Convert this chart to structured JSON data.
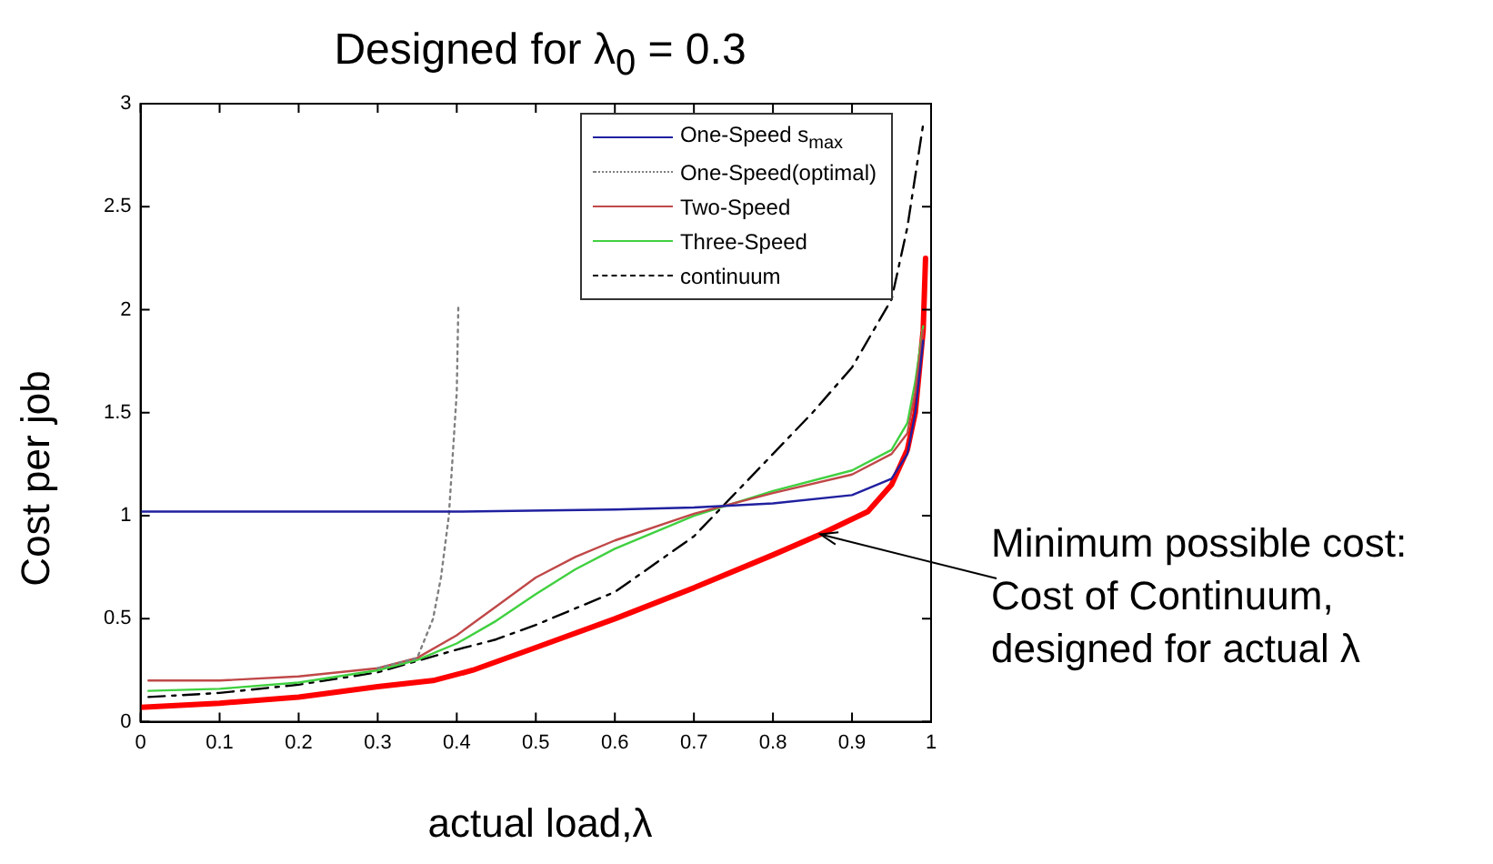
{
  "chart_data": {
    "type": "line",
    "title": "Designed for λ$_{0}$ = 0.3",
    "xlabel": "actual load,λ",
    "ylabel": "Cost per job",
    "xlim": [
      0,
      1
    ],
    "xticks": [
      0,
      0.1,
      0.2,
      0.3,
      0.4,
      0.5,
      0.6,
      0.7,
      0.8,
      0.9,
      1
    ],
    "ylim": [
      0,
      3
    ],
    "yticks": [
      0,
      0.5,
      1,
      1.5,
      2,
      2.5,
      3
    ],
    "grid": false,
    "legend": "top right",
    "marker": "none",
    "annotations": [
      {
        "text": "Minimum possible cost:\nCost of Continuum,\ndesigned for actual λ",
        "x": 0.86,
        "y": 0.91
      }
    ],
    "series": [
      {
        "name": "One-Speed s$_{max}$",
        "color": "#2020a0",
        "line_style": "solid",
        "x": [
          0,
          0.4,
          0.6,
          0.7,
          0.8,
          0.9,
          0.95,
          0.97,
          0.98,
          0.99
        ],
        "values": [
          1.02,
          1.02,
          1.03,
          1.04,
          1.06,
          1.1,
          1.18,
          1.3,
          1.5,
          1.85
        ]
      },
      {
        "name": "One-Speed(optimal)",
        "color": "#808080",
        "line_style": "dotted",
        "x": [
          0.3,
          0.35,
          0.37,
          0.38,
          0.39,
          0.395,
          0.4,
          0.402
        ],
        "values": [
          0.26,
          0.31,
          0.5,
          0.7,
          1.0,
          1.3,
          1.6,
          2.02
        ]
      },
      {
        "name": "Two-Speed",
        "color": "#c04848",
        "line_style": "solid",
        "x": [
          0.01,
          0.1,
          0.2,
          0.3,
          0.35,
          0.4,
          0.45,
          0.5,
          0.55,
          0.6,
          0.7,
          0.8,
          0.9,
          0.95,
          0.97,
          0.98,
          0.99
        ],
        "values": [
          0.2,
          0.2,
          0.22,
          0.26,
          0.31,
          0.42,
          0.56,
          0.7,
          0.8,
          0.88,
          1.01,
          1.11,
          1.2,
          1.3,
          1.4,
          1.6,
          1.9
        ]
      },
      {
        "name": "Three-Speed",
        "color": "#40d040",
        "line_style": "solid",
        "x": [
          0.01,
          0.1,
          0.2,
          0.3,
          0.35,
          0.4,
          0.45,
          0.5,
          0.55,
          0.6,
          0.7,
          0.8,
          0.9,
          0.95,
          0.97,
          0.98,
          0.99
        ],
        "values": [
          0.15,
          0.16,
          0.19,
          0.25,
          0.3,
          0.38,
          0.49,
          0.62,
          0.74,
          0.84,
          1.0,
          1.12,
          1.22,
          1.32,
          1.45,
          1.65,
          1.92
        ]
      },
      {
        "name": "continuum",
        "color": "#000000",
        "line_style": "dashed",
        "x": [
          0.01,
          0.1,
          0.2,
          0.3,
          0.4,
          0.45,
          0.5,
          0.6,
          0.7,
          0.75,
          0.8,
          0.85,
          0.9,
          0.95,
          0.97,
          0.99
        ],
        "values": [
          0.12,
          0.14,
          0.18,
          0.24,
          0.35,
          0.4,
          0.47,
          0.63,
          0.9,
          1.1,
          1.3,
          1.5,
          1.72,
          2.05,
          2.4,
          2.9
        ]
      },
      {
        "color": "#ff0000",
        "line_style": "solid",
        "x": [
          0,
          0.1,
          0.2,
          0.3,
          0.37,
          0.42,
          0.5,
          0.6,
          0.7,
          0.8,
          0.86,
          0.92,
          0.95,
          0.97,
          0.98,
          0.99,
          0.993
        ],
        "values": [
          0.07,
          0.09,
          0.12,
          0.17,
          0.2,
          0.25,
          0.36,
          0.5,
          0.65,
          0.81,
          0.91,
          1.02,
          1.15,
          1.32,
          1.5,
          1.9,
          2.25
        ]
      }
    ]
  }
}
